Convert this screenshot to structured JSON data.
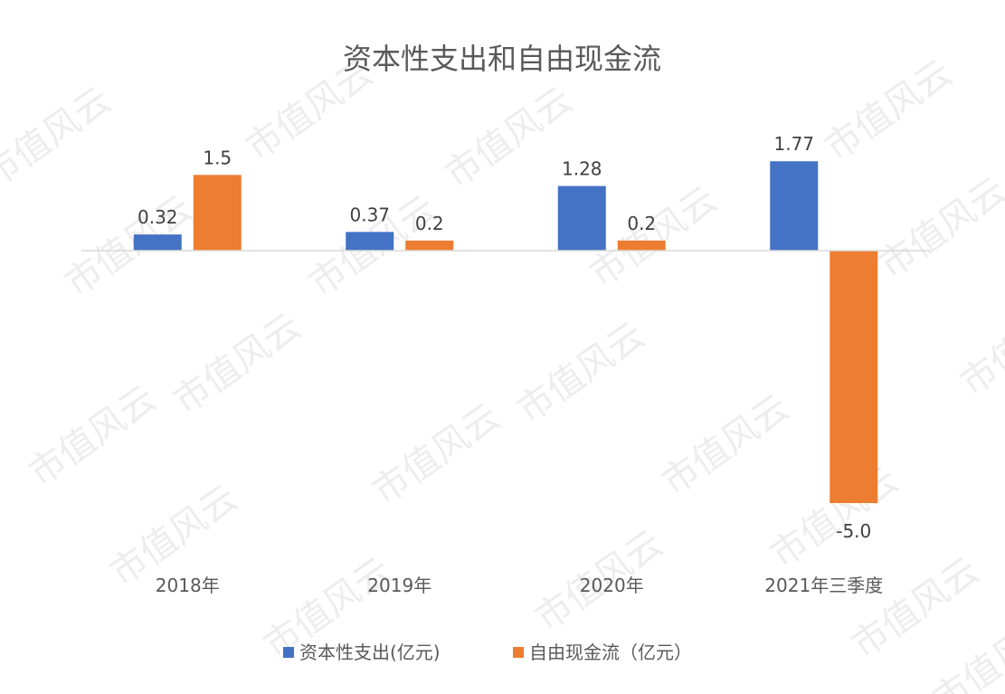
{
  "watermark": "市值风云",
  "chart_data": {
    "type": "bar",
    "title": "资本性支出和自由现金流",
    "categories": [
      "2018年",
      "2019年",
      "2020年",
      "2021年三季度"
    ],
    "series": [
      {
        "name": "资本性支出(亿元)",
        "color": "#4472C4",
        "values": [
          0.32,
          0.37,
          1.28,
          1.77
        ],
        "labels": [
          "0.32",
          "0.37",
          "1.28",
          "1.77"
        ]
      },
      {
        "name": "自由现金流（亿元）",
        "color": "#ED7D31",
        "values": [
          1.5,
          0.2,
          0.2,
          -5.0
        ],
        "labels": [
          "1.5",
          "0.2",
          "0.2",
          "-5.0"
        ]
      }
    ],
    "ylim": [
      -5.0,
      1.77
    ],
    "xlabel": "",
    "ylabel": "",
    "legend": "bottom",
    "grid": false
  }
}
